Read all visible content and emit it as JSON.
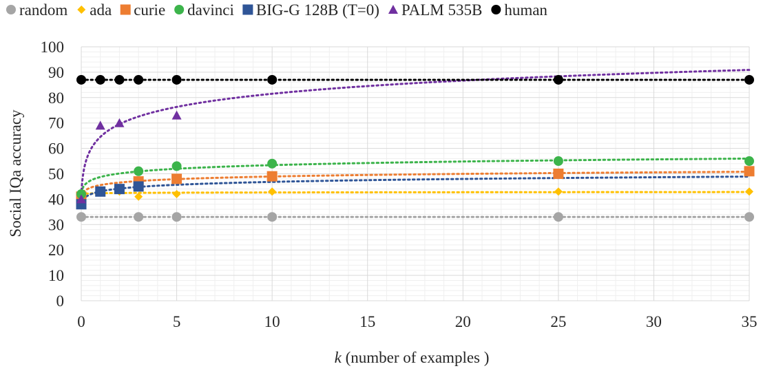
{
  "chart_data": {
    "type": "scatter",
    "xlabel_italic": "k",
    "xlabel_rest": " (number of examples )",
    "ylabel": "Social  IQa accuracy",
    "xlim": [
      0,
      35
    ],
    "ylim": [
      0,
      100
    ],
    "x_ticks": [
      "0",
      "5",
      "10",
      "15",
      "20",
      "25",
      "30",
      "35"
    ],
    "y_ticks": [
      "0",
      "10",
      "20",
      "30",
      "40",
      "50",
      "60",
      "70",
      "80",
      "90",
      "100"
    ],
    "x_tick_values": [
      0,
      5,
      10,
      15,
      20,
      25,
      30,
      35
    ],
    "y_tick_values": [
      0,
      10,
      20,
      30,
      40,
      50,
      60,
      70,
      80,
      90,
      100
    ],
    "grid": true,
    "legend_position": "top",
    "trendlines": "dotted logarithmic fit per series",
    "series": [
      {
        "name": "random",
        "color": "#a5a5a5",
        "marker": "circle",
        "x": [
          0,
          3,
          5,
          10,
          25,
          35
        ],
        "y": [
          33,
          33,
          33,
          33,
          33,
          33
        ]
      },
      {
        "name": "ada",
        "color": "#ffc000",
        "marker": "diamond",
        "x": [
          0,
          1,
          2,
          3,
          5,
          10,
          25,
          35
        ],
        "y": [
          42,
          43,
          43,
          41,
          42,
          43,
          43,
          43
        ]
      },
      {
        "name": "curie",
        "color": "#ed7d31",
        "marker": "square",
        "x": [
          0,
          3,
          5,
          10,
          25,
          35
        ],
        "y": [
          41,
          47,
          48,
          49,
          50,
          51
        ]
      },
      {
        "name": "davinci",
        "color": "#3cb44b",
        "marker": "circle",
        "x": [
          0,
          3,
          5,
          10,
          25,
          35
        ],
        "y": [
          42,
          51,
          53,
          54,
          55,
          55
        ]
      },
      {
        "name": "BIG-G 128B (T=0)",
        "color": "#2f5597",
        "marker": "square",
        "x": [
          0,
          1,
          2,
          3
        ],
        "y": [
          38,
          43,
          44,
          45
        ]
      },
      {
        "name": "PALM 535B",
        "color": "#7030a0",
        "marker": "triangle",
        "x": [
          0,
          1,
          2,
          5
        ],
        "y": [
          40,
          69,
          70,
          73
        ]
      },
      {
        "name": "human",
        "color": "#000000",
        "marker": "circle",
        "x": [
          0,
          1,
          2,
          3,
          5,
          10,
          25,
          35
        ],
        "y": [
          87,
          87,
          87,
          87,
          87,
          87,
          87,
          87
        ]
      }
    ]
  }
}
